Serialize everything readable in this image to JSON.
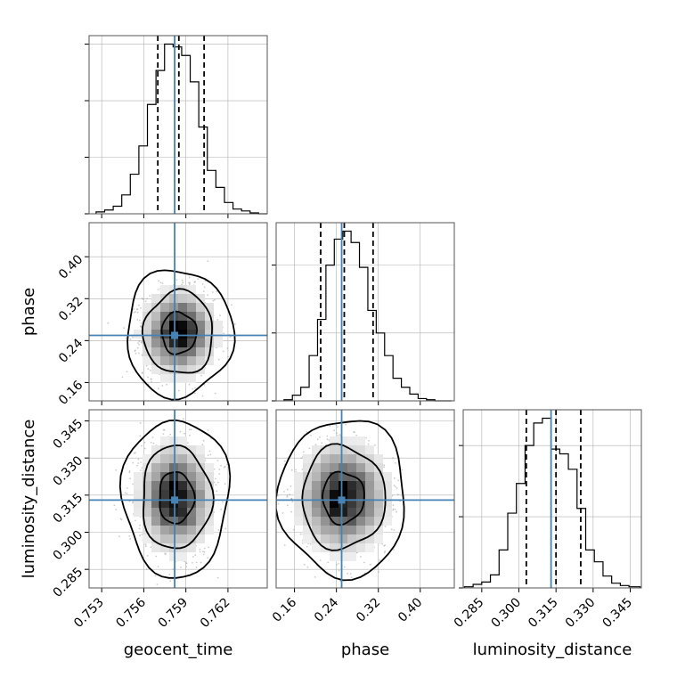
{
  "chart_data": {
    "type": "corner",
    "parameters": [
      "geocent_time",
      "phase",
      "luminosity_distance"
    ],
    "truths": {
      "geocent_time": 0.7582,
      "phase": 0.25,
      "luminosity_distance": 0.313
    },
    "grid": true,
    "colors": {
      "truth": "#4682b4",
      "hist": "#000000",
      "grid": "#b0b0b0",
      "scatter": "#a0a0a0",
      "density": "#000000"
    },
    "marginals": [
      {
        "parameter": "geocent_time",
        "range": [
          0.7521,
          0.7648
        ],
        "ticks": [
          0.753,
          0.756,
          0.759,
          0.762
        ],
        "tick_labels": [
          "0.753",
          "0.756",
          "0.759",
          "0.762"
        ],
        "bins_edges": [
          0.7526,
          0.75321,
          0.75382,
          0.75443,
          0.75504,
          0.75565,
          0.75626,
          0.75687,
          0.75748,
          0.75809,
          0.7587,
          0.75931,
          0.75992,
          0.76053,
          0.76114,
          0.76175,
          0.76236,
          0.76297,
          0.76358,
          0.76419,
          0.7648
        ],
        "counts": [
          2,
          4,
          8,
          20,
          42,
          72,
          116,
          152,
          180,
          177,
          168,
          140,
          92,
          46,
          28,
          12,
          5,
          3,
          1,
          0
        ],
        "quantiles": [
          0.757,
          0.7585,
          0.7603
        ]
      },
      {
        "parameter": "phase",
        "range": [
          0.125,
          0.465
        ],
        "ticks": [
          0.16,
          0.24,
          0.32,
          0.4
        ],
        "tick_labels": [
          "0.16",
          "0.24",
          "0.32",
          "0.40"
        ],
        "bins_edges": [
          0.14,
          0.156,
          0.172,
          0.188,
          0.204,
          0.22,
          0.236,
          0.252,
          0.268,
          0.284,
          0.3,
          0.316,
          0.332,
          0.348,
          0.364,
          0.38,
          0.396,
          0.412,
          0.428,
          0.444,
          0.46
        ],
        "counts": [
          1,
          5,
          12,
          40,
          72,
          120,
          143,
          150,
          140,
          118,
          80,
          60,
          40,
          20,
          12,
          6,
          2,
          1,
          0,
          0
        ],
        "quantiles": [
          0.21,
          0.255,
          0.31
        ]
      },
      {
        "parameter": "luminosity_distance",
        "range": [
          0.2775,
          0.3495
        ],
        "ticks": [
          0.285,
          0.3,
          0.315,
          0.33,
          0.345
        ],
        "tick_labels": [
          "0.285",
          "0.300",
          "0.315",
          "0.330",
          "0.345"
        ],
        "bins_edges": [
          0.278,
          0.2815,
          0.285,
          0.2885,
          0.292,
          0.2955,
          0.299,
          0.3025,
          0.306,
          0.3095,
          0.313,
          0.3165,
          0.32,
          0.3235,
          0.327,
          0.3305,
          0.334,
          0.3375,
          0.341,
          0.3445,
          0.349
        ],
        "counts": [
          1,
          3,
          5,
          11,
          32,
          63,
          88,
          120,
          139,
          143,
          117,
          113,
          100,
          67,
          32,
          22,
          10,
          4,
          2,
          1
        ],
        "quantiles": [
          0.303,
          0.315,
          0.325
        ]
      }
    ],
    "joint": [
      {
        "x": "geocent_time",
        "y": "phase",
        "center": [
          0.7585,
          0.2545
        ],
        "sigma": [
          0.00125,
          0.04
        ],
        "contour_levels": [
          0.39,
          0.86,
          0.99
        ]
      },
      {
        "x": "geocent_time",
        "y": "luminosity_distance",
        "center": [
          0.7583,
          0.314
        ],
        "sigma": [
          0.00125,
          0.0105
        ],
        "contour_levels": [
          0.39,
          0.86,
          0.99
        ]
      },
      {
        "x": "phase",
        "y": "luminosity_distance",
        "center": [
          0.253,
          0.314
        ],
        "sigma": [
          0.04,
          0.0105
        ],
        "contour_levels": [
          0.39,
          0.86,
          0.99
        ]
      }
    ],
    "xlabels": [
      "geocent_time",
      "phase",
      "luminosity_distance"
    ],
    "ylabels": [
      "",
      "phase",
      "luminosity_distance"
    ]
  }
}
